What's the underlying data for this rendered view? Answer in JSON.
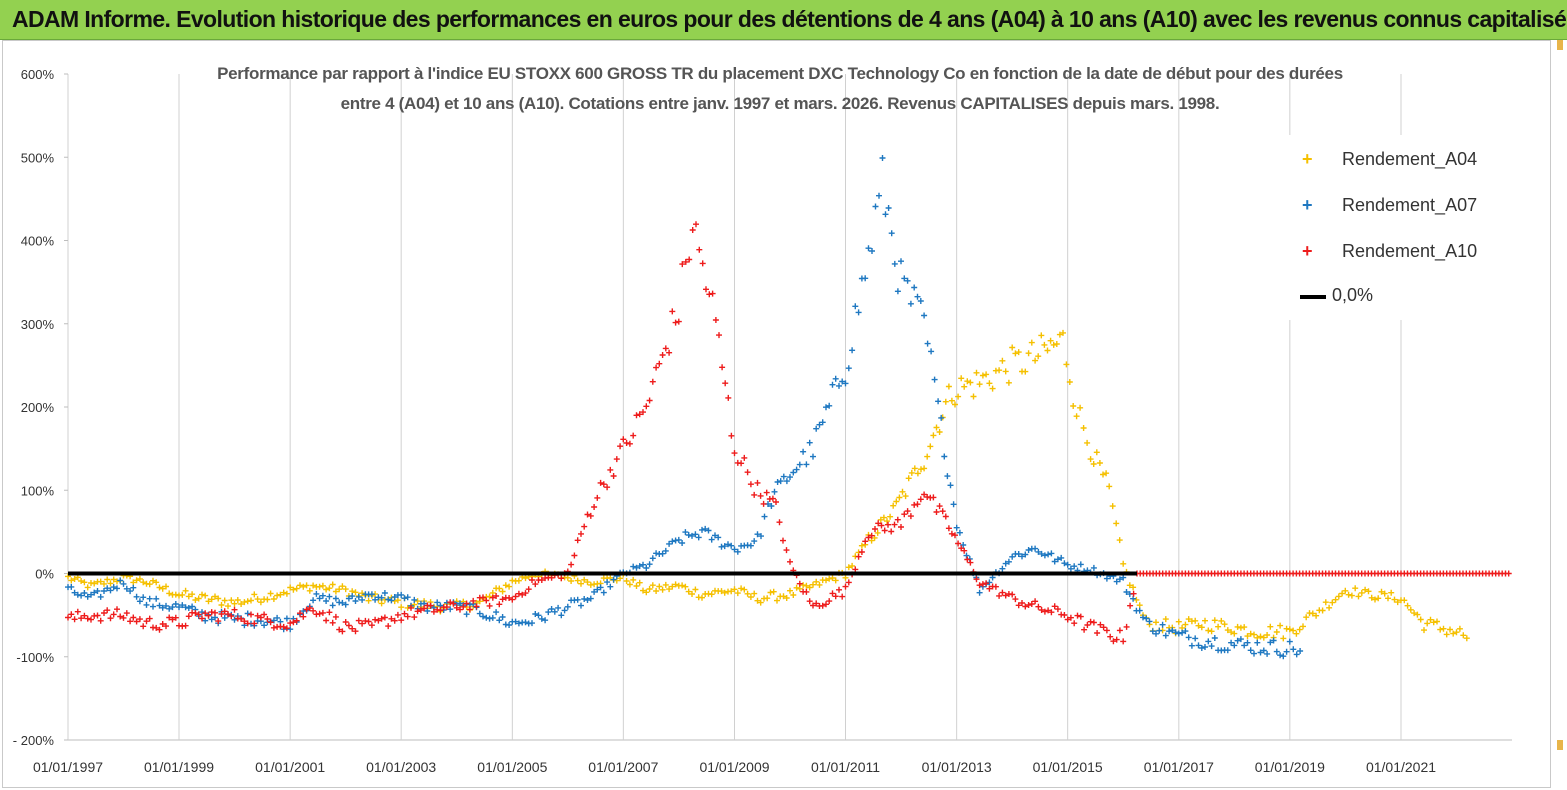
{
  "banner": {
    "title": "ADAM Informe. Evolution historique des performances en euros pour des détentions de 4 ans (A04) à 10 ans (A10) avec les revenus connus capitalisés"
  },
  "chart_data": {
    "type": "scatter",
    "title_line1": "Performance par rapport à l'indice EU STOXX 600 GROSS TR  du placement DXC Technology Co en fonction de la date de début pour des durées",
    "title_line2": "entre 4 (A04) et 10 ans (A10). Cotations entre janv. 1997 et mars. 2026. Revenus CAPITALISES depuis mars. 1998.",
    "xlabel": "",
    "ylabel": "",
    "x_range": [
      "1997-01-01",
      "2023-01-01"
    ],
    "ylim": [
      -200,
      600
    ],
    "y_ticks": [
      -200,
      -100,
      0,
      100,
      200,
      300,
      400,
      500,
      600
    ],
    "y_tick_labels": [
      "- 200%",
      "-100%",
      "0%",
      "100%",
      "200%",
      "300%",
      "400%",
      "500%",
      "600%"
    ],
    "x_tick_labels": [
      "01/01/1997",
      "01/01/1999",
      "01/01/2001",
      "01/01/2003",
      "01/01/2005",
      "01/01/2007",
      "01/01/2009",
      "01/01/2011",
      "01/01/2013",
      "01/01/2015",
      "01/01/2017",
      "01/01/2019",
      "01/01/2021"
    ],
    "x_tick_dates": [
      "1997-01-01",
      "1999-01-01",
      "2001-01-01",
      "2003-01-01",
      "2005-01-01",
      "2007-01-01",
      "2009-01-01",
      "2011-01-01",
      "2013-01-01",
      "2015-01-01",
      "2017-01-01",
      "2019-01-01",
      "2021-01-01"
    ],
    "grid": "vertical",
    "legend_position": "top-right",
    "series": [
      {
        "name": "Rendement_A04",
        "color": "#f5c000",
        "marker": "plus",
        "points": [
          [
            "1997-01-01",
            -5
          ],
          [
            "1997-06-01",
            -15
          ],
          [
            "1998-01-01",
            -5
          ],
          [
            "1998-06-01",
            -10
          ],
          [
            "1999-01-01",
            -25
          ],
          [
            "1999-06-01",
            -30
          ],
          [
            "2000-01-01",
            -35
          ],
          [
            "2000-06-01",
            -30
          ],
          [
            "2001-01-01",
            -20
          ],
          [
            "2001-06-01",
            -15
          ],
          [
            "2002-01-01",
            -20
          ],
          [
            "2002-06-01",
            -30
          ],
          [
            "2003-01-01",
            -35
          ],
          [
            "2003-06-01",
            -38
          ],
          [
            "2004-01-01",
            -40
          ],
          [
            "2004-06-01",
            -35
          ],
          [
            "2005-01-01",
            -10
          ],
          [
            "2005-06-01",
            0
          ],
          [
            "2006-01-01",
            -5
          ],
          [
            "2006-06-01",
            -10
          ],
          [
            "2007-01-01",
            -5
          ],
          [
            "2007-06-01",
            -20
          ],
          [
            "2008-01-01",
            -15
          ],
          [
            "2008-06-01",
            -25
          ],
          [
            "2009-01-01",
            -20
          ],
          [
            "2009-06-01",
            -30
          ],
          [
            "2010-01-01",
            -25
          ],
          [
            "2010-06-01",
            -15
          ],
          [
            "2011-01-01",
            0
          ],
          [
            "2011-06-01",
            40
          ],
          [
            "2011-12-01",
            80
          ],
          [
            "2012-06-01",
            140
          ],
          [
            "2012-12-01",
            220
          ],
          [
            "2013-06-01",
            230
          ],
          [
            "2014-01-01",
            250
          ],
          [
            "2014-06-01",
            260
          ],
          [
            "2014-12-01",
            280
          ],
          [
            "2015-03-01",
            200
          ],
          [
            "2015-06-01",
            150
          ],
          [
            "2015-10-01",
            100
          ],
          [
            "2016-01-01",
            10
          ],
          [
            "2016-06-01",
            -60
          ],
          [
            "2017-01-01",
            -65
          ],
          [
            "2017-06-01",
            -60
          ],
          [
            "2018-01-01",
            -65
          ],
          [
            "2018-06-01",
            -70
          ],
          [
            "2019-01-01",
            -70
          ],
          [
            "2019-06-01",
            -50
          ],
          [
            "2020-01-01",
            -20
          ],
          [
            "2020-06-01",
            -25
          ],
          [
            "2021-01-01",
            -30
          ],
          [
            "2021-06-01",
            -60
          ],
          [
            "2022-01-01",
            -70
          ],
          [
            "2022-04-01",
            -78
          ]
        ]
      },
      {
        "name": "Rendement_A07",
        "color": "#1f78c1",
        "marker": "plus",
        "points": [
          [
            "1997-01-01",
            -20
          ],
          [
            "1997-06-01",
            -30
          ],
          [
            "1998-01-01",
            -10
          ],
          [
            "1998-06-01",
            -35
          ],
          [
            "1999-01-01",
            -40
          ],
          [
            "1999-06-01",
            -50
          ],
          [
            "2000-01-01",
            -55
          ],
          [
            "2000-06-01",
            -55
          ],
          [
            "2001-01-01",
            -60
          ],
          [
            "2001-06-01",
            -30
          ],
          [
            "2002-01-01",
            -35
          ],
          [
            "2002-06-01",
            -25
          ],
          [
            "2003-01-01",
            -30
          ],
          [
            "2003-06-01",
            -40
          ],
          [
            "2004-01-01",
            -40
          ],
          [
            "2004-06-01",
            -45
          ],
          [
            "2005-01-01",
            -60
          ],
          [
            "2005-06-01",
            -55
          ],
          [
            "2006-01-01",
            -40
          ],
          [
            "2006-06-01",
            -30
          ],
          [
            "2007-01-01",
            0
          ],
          [
            "2007-06-01",
            10
          ],
          [
            "2008-01-01",
            40
          ],
          [
            "2008-06-01",
            50
          ],
          [
            "2009-01-01",
            30
          ],
          [
            "2009-06-01",
            40
          ],
          [
            "2009-09-01",
            90
          ],
          [
            "2010-01-01",
            120
          ],
          [
            "2010-06-01",
            150
          ],
          [
            "2011-01-01",
            250
          ],
          [
            "2011-06-01",
            380
          ],
          [
            "2011-09-01",
            470
          ],
          [
            "2012-01-01",
            350
          ],
          [
            "2012-06-01",
            300
          ],
          [
            "2012-09-01",
            200
          ],
          [
            "2013-01-01",
            60
          ],
          [
            "2013-06-01",
            -20
          ],
          [
            "2014-01-01",
            20
          ],
          [
            "2014-06-01",
            30
          ],
          [
            "2015-01-01",
            10
          ],
          [
            "2015-06-01",
            5
          ],
          [
            "2016-01-01",
            -10
          ],
          [
            "2016-06-01",
            -60
          ],
          [
            "2017-01-01",
            -75
          ],
          [
            "2017-06-01",
            -80
          ],
          [
            "2018-01-01",
            -85
          ],
          [
            "2018-06-01",
            -88
          ],
          [
            "2019-01-01",
            -90
          ],
          [
            "2019-04-01",
            -92
          ]
        ]
      },
      {
        "name": "Rendement_A10",
        "color": "#ee1c1c",
        "marker": "plus",
        "points": [
          [
            "1997-01-01",
            -55
          ],
          [
            "1997-06-01",
            -50
          ],
          [
            "1998-01-01",
            -50
          ],
          [
            "1998-06-01",
            -60
          ],
          [
            "1999-01-01",
            -60
          ],
          [
            "1999-06-01",
            -50
          ],
          [
            "2000-01-01",
            -50
          ],
          [
            "2000-06-01",
            -55
          ],
          [
            "2001-01-01",
            -60
          ],
          [
            "2001-06-01",
            -40
          ],
          [
            "2002-01-01",
            -65
          ],
          [
            "2002-06-01",
            -65
          ],
          [
            "2003-01-01",
            -50
          ],
          [
            "2003-06-01",
            -45
          ],
          [
            "2004-01-01",
            -40
          ],
          [
            "2004-06-01",
            -35
          ],
          [
            "2005-01-01",
            -30
          ],
          [
            "2005-06-01",
            -10
          ],
          [
            "2006-01-01",
            0
          ],
          [
            "2006-06-01",
            80
          ],
          [
            "2007-01-01",
            150
          ],
          [
            "2007-06-01",
            200
          ],
          [
            "2008-01-01",
            320
          ],
          [
            "2008-04-01",
            420
          ],
          [
            "2008-09-01",
            300
          ],
          [
            "2009-01-01",
            150
          ],
          [
            "2009-06-01",
            100
          ],
          [
            "2009-10-01",
            80
          ],
          [
            "2010-01-01",
            10
          ],
          [
            "2010-06-01",
            -40
          ],
          [
            "2011-01-01",
            -20
          ],
          [
            "2011-06-01",
            50
          ],
          [
            "2012-01-01",
            60
          ],
          [
            "2012-06-01",
            100
          ],
          [
            "2012-12-01",
            50
          ],
          [
            "2013-06-01",
            -10
          ],
          [
            "2014-01-01",
            -30
          ],
          [
            "2014-06-01",
            -40
          ],
          [
            "2015-01-01",
            -50
          ],
          [
            "2015-06-01",
            -65
          ],
          [
            "2016-01-01",
            -78
          ],
          [
            "2016-04-01",
            0
          ],
          [
            "2017-01-01",
            0
          ],
          [
            "2018-01-01",
            0
          ],
          [
            "2019-01-01",
            0
          ],
          [
            "2020-01-01",
            0
          ],
          [
            "2021-01-01",
            0
          ],
          [
            "2022-01-01",
            0
          ],
          [
            "2023-01-01",
            0
          ]
        ]
      },
      {
        "name": "0,0%",
        "color": "#000000",
        "marker": "line",
        "points": [
          [
            "1997-01-01",
            0
          ],
          [
            "2016-04-01",
            0
          ]
        ]
      }
    ]
  },
  "legend": {
    "a04": "Rendement_A04",
    "a07": "Rendement_A07",
    "a10": "Rendement_A10",
    "zero": "0,0%",
    "marker_glyph": "+"
  }
}
